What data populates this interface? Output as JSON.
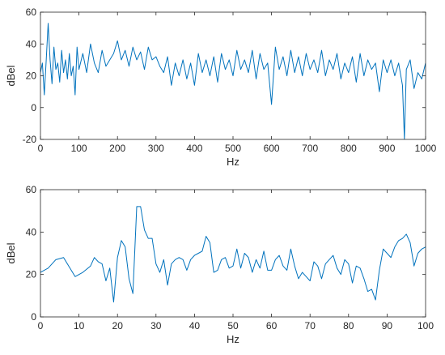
{
  "chart_data": [
    {
      "type": "line",
      "xlabel": "Hz",
      "ylabel": "dBel",
      "xlim": [
        0,
        1000
      ],
      "ylim": [
        -20,
        60
      ],
      "xticks": [
        0,
        100,
        200,
        300,
        400,
        500,
        600,
        700,
        800,
        900,
        1000
      ],
      "yticks": [
        -20,
        0,
        20,
        40,
        60
      ],
      "xtick_labels": [
        "0",
        "100",
        "200",
        "300",
        "400",
        "500",
        "600",
        "700",
        "800",
        "900",
        "1000"
      ],
      "ytick_labels": [
        "-20",
        "0",
        "20",
        "40",
        "60"
      ],
      "grid": false,
      "color": "#0072BD",
      "series": [
        {
          "x": [
            0,
            5,
            10,
            15,
            20,
            25,
            30,
            35,
            40,
            45,
            50,
            55,
            60,
            65,
            70,
            75,
            80,
            85,
            90,
            95,
            100,
            110,
            120,
            130,
            140,
            150,
            160,
            170,
            180,
            190,
            200,
            210,
            220,
            230,
            240,
            250,
            260,
            270,
            280,
            290,
            300,
            310,
            320,
            330,
            340,
            350,
            360,
            370,
            380,
            390,
            400,
            410,
            420,
            430,
            440,
            450,
            460,
            470,
            480,
            490,
            500,
            510,
            520,
            530,
            540,
            550,
            560,
            570,
            580,
            590,
            600,
            610,
            620,
            630,
            640,
            650,
            660,
            670,
            680,
            690,
            700,
            710,
            720,
            730,
            740,
            750,
            760,
            770,
            780,
            790,
            800,
            810,
            820,
            830,
            840,
            850,
            860,
            870,
            880,
            890,
            900,
            910,
            920,
            930,
            940,
            945,
            950,
            960,
            970,
            980,
            990,
            1000
          ],
          "y": [
            22,
            28,
            8,
            30,
            53,
            30,
            15,
            38,
            24,
            28,
            16,
            36,
            22,
            30,
            18,
            34,
            20,
            26,
            8,
            38,
            24,
            34,
            22,
            40,
            28,
            22,
            36,
            26,
            30,
            34,
            42,
            30,
            36,
            26,
            38,
            30,
            35,
            24,
            38,
            30,
            32,
            26,
            22,
            32,
            14,
            28,
            20,
            30,
            18,
            28,
            14,
            34,
            22,
            30,
            20,
            32,
            16,
            34,
            24,
            30,
            20,
            36,
            24,
            30,
            22,
            36,
            18,
            34,
            24,
            28,
            2,
            38,
            24,
            32,
            20,
            36,
            22,
            32,
            20,
            34,
            24,
            30,
            22,
            36,
            20,
            30,
            24,
            34,
            18,
            28,
            22,
            32,
            16,
            34,
            20,
            30,
            24,
            28,
            10,
            30,
            22,
            30,
            20,
            28,
            14,
            -20,
            24,
            30,
            12,
            22,
            18,
            28
          ]
        }
      ]
    },
    {
      "type": "line",
      "xlabel": "Hz",
      "ylabel": "dBel",
      "xlim": [
        0,
        100
      ],
      "ylim": [
        0,
        60
      ],
      "xticks": [
        0,
        10,
        20,
        30,
        40,
        50,
        60,
        70,
        80,
        90,
        100
      ],
      "yticks": [
        0,
        20,
        40,
        60
      ],
      "xtick_labels": [
        "0",
        "10",
        "20",
        "30",
        "40",
        "50",
        "60",
        "70",
        "80",
        "90",
        "100"
      ],
      "ytick_labels": [
        "0",
        "20",
        "40",
        "60"
      ],
      "grid": false,
      "color": "#0072BD",
      "series": [
        {
          "x": [
            0,
            2,
            4,
            6,
            7,
            9,
            10,
            11,
            13,
            14,
            15,
            16,
            17,
            18,
            19,
            20,
            21,
            22,
            23,
            24,
            25,
            26,
            27,
            28,
            29,
            30,
            31,
            32,
            33,
            34,
            35,
            36,
            37,
            38,
            39,
            40,
            41,
            42,
            43,
            44,
            45,
            46,
            47,
            48,
            49,
            50,
            51,
            52,
            53,
            54,
            55,
            56,
            57,
            58,
            59,
            60,
            61,
            62,
            63,
            64,
            65,
            66,
            67,
            68,
            69,
            70,
            71,
            72,
            73,
            74,
            75,
            76,
            77,
            78,
            79,
            80,
            81,
            82,
            83,
            84,
            85,
            86,
            87,
            88,
            89,
            90,
            91,
            92,
            93,
            94,
            95,
            96,
            97,
            98,
            99,
            100
          ],
          "y": [
            21,
            23,
            27,
            28,
            25,
            19,
            20,
            21,
            24,
            28,
            26,
            25,
            17,
            23,
            7,
            28,
            36,
            33,
            18,
            11,
            52,
            52,
            41,
            37,
            37,
            25,
            21,
            27,
            15,
            25,
            27,
            28,
            27,
            22,
            27,
            29,
            30,
            31,
            38,
            35,
            21,
            22,
            27,
            28,
            23,
            24,
            32,
            23,
            30,
            28,
            21,
            27,
            23,
            31,
            22,
            22,
            27,
            29,
            24,
            22,
            32,
            24,
            18,
            21,
            19,
            17,
            26,
            24,
            18,
            25,
            27,
            29,
            23,
            20,
            27,
            25,
            16,
            24,
            23,
            18,
            12,
            13,
            8,
            22,
            32,
            30,
            28,
            33,
            36,
            37,
            39,
            35,
            24,
            30,
            32,
            33
          ]
        }
      ]
    }
  ]
}
